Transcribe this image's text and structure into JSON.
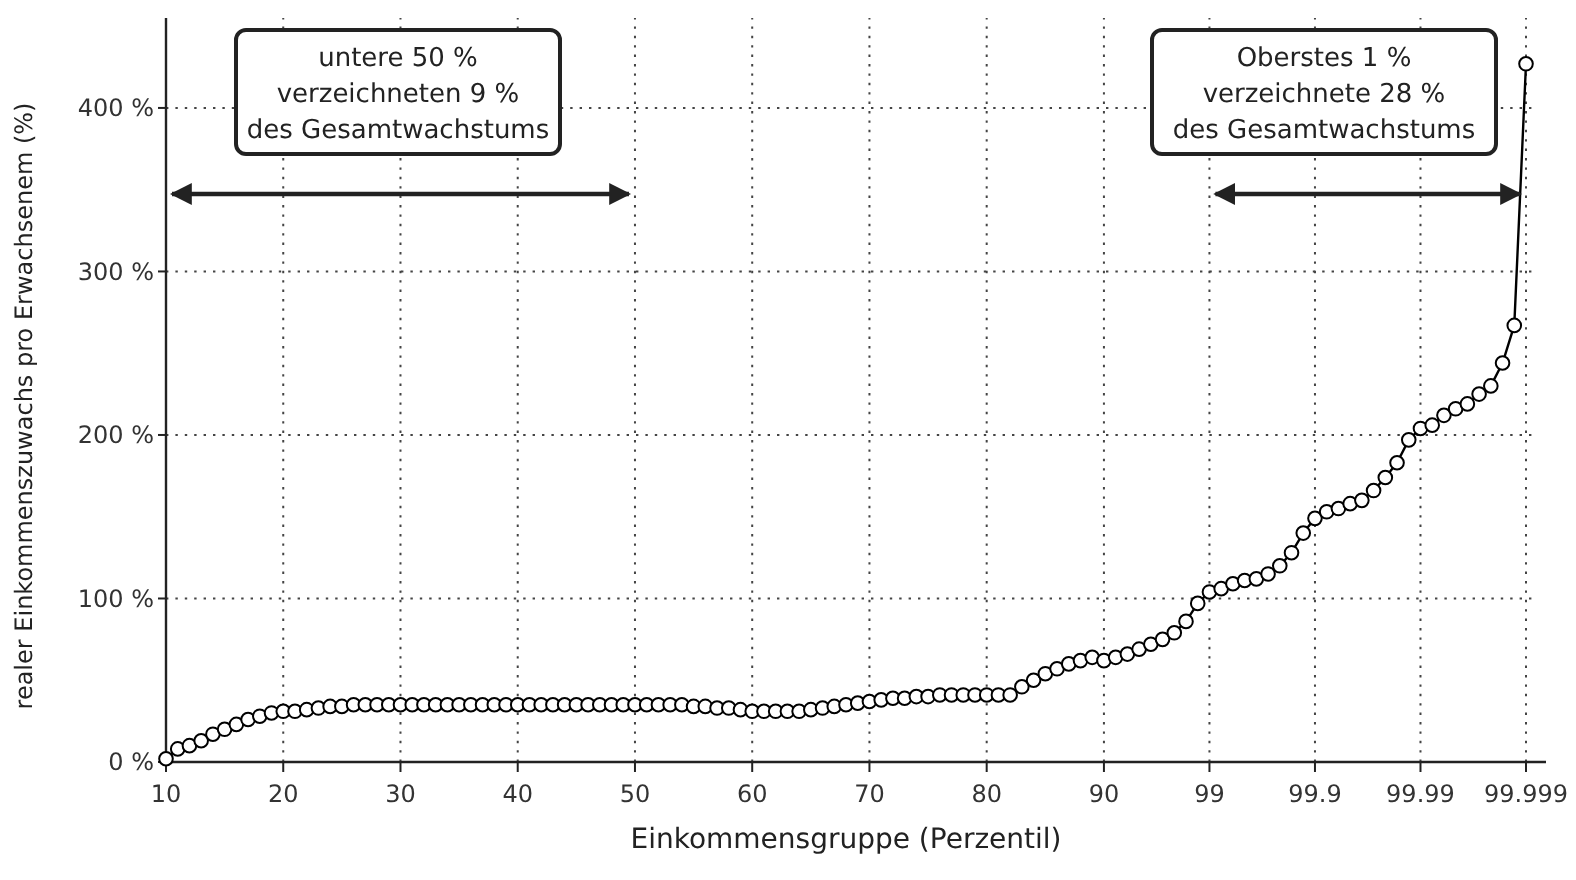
{
  "chart_data": {
    "type": "line",
    "xlabel": "Einkommensgruppe (Perzentil)",
    "ylabel": "realer Einkommenszuwachs pro Erwachsenem (%)",
    "categories": [
      "10",
      null,
      null,
      null,
      null,
      null,
      null,
      null,
      null,
      null,
      "20",
      null,
      null,
      null,
      null,
      null,
      null,
      null,
      null,
      null,
      "30",
      null,
      null,
      null,
      null,
      null,
      null,
      null,
      null,
      null,
      "40",
      null,
      null,
      null,
      null,
      null,
      null,
      null,
      null,
      null,
      "50",
      null,
      null,
      null,
      null,
      null,
      null,
      null,
      null,
      null,
      "60",
      null,
      null,
      null,
      null,
      null,
      null,
      null,
      null,
      null,
      "70",
      null,
      null,
      null,
      null,
      null,
      null,
      null,
      null,
      null,
      "80",
      null,
      null,
      null,
      null,
      null,
      null,
      null,
      null,
      null,
      "90",
      null,
      null,
      null,
      null,
      null,
      null,
      null,
      null,
      "99",
      null,
      null,
      null,
      null,
      null,
      null,
      null,
      null,
      "99.9",
      null,
      null,
      null,
      null,
      null,
      null,
      null,
      null,
      "99.99",
      null,
      null,
      null,
      null,
      null,
      null,
      null,
      null,
      "99.999"
    ],
    "series": [
      {
        "color": "#000000",
        "values": [
          2,
          8,
          10,
          13,
          17,
          20,
          23,
          26,
          28,
          30,
          31,
          31,
          32,
          33,
          34,
          34,
          35,
          35,
          35,
          35,
          35,
          35,
          35,
          35,
          35,
          35,
          35,
          35,
          35,
          35,
          35,
          35,
          35,
          35,
          35,
          35,
          35,
          35,
          35,
          35,
          35,
          35,
          35,
          35,
          35,
          34,
          34,
          33,
          33,
          32,
          31,
          31,
          31,
          31,
          31,
          32,
          33,
          34,
          35,
          36,
          37,
          38,
          39,
          39,
          40,
          40,
          41,
          41,
          41,
          41,
          41,
          41,
          41,
          46,
          50,
          54,
          57,
          60,
          62,
          64,
          62,
          64,
          66,
          69,
          72,
          75,
          79,
          86,
          97,
          104,
          106,
          109,
          111,
          112,
          115,
          120,
          128,
          140,
          149,
          153,
          155,
          158,
          160,
          166,
          174,
          183,
          197,
          204,
          206,
          212,
          216,
          219,
          225,
          230,
          244,
          267,
          427
        ]
      }
    ],
    "ylim": [
      0,
      455
    ],
    "yticks": [
      {
        "value": 0,
        "label": "0 %"
      },
      {
        "value": 100,
        "label": "100 %"
      },
      {
        "value": 200,
        "label": "200 %"
      },
      {
        "value": 300,
        "label": "300 %"
      },
      {
        "value": 400,
        "label": "400 %"
      }
    ],
    "grid": true,
    "marker": "circle",
    "line_style": "solid",
    "annotations": [
      "untere 50 %\nverzeichneten 9 %\ndes Gesamtwachstums",
      "Oberstes 1 %\nverzeichnete 28 %\ndes Gesamtwachstums"
    ]
  }
}
